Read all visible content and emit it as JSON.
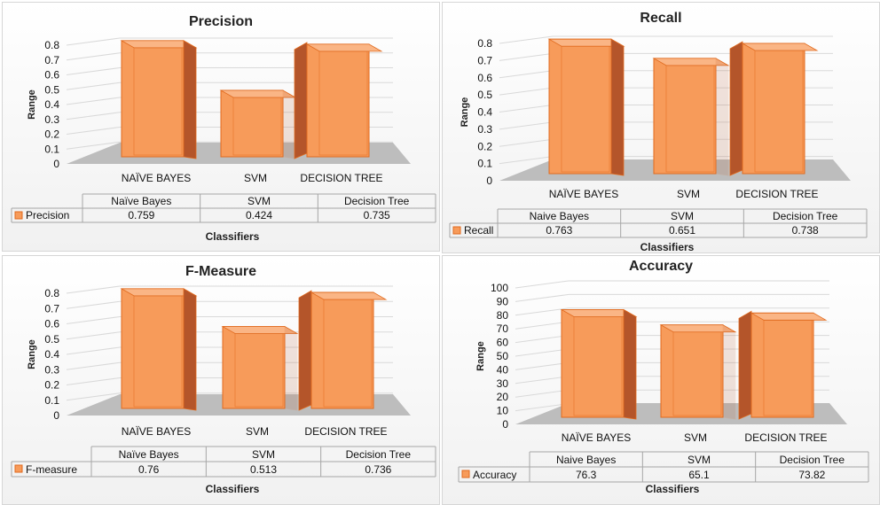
{
  "colors": {
    "bar_front": "#F79B5A",
    "bar_top": "#FAB585",
    "bar_side": "#B4552A",
    "bar_edge": "#E06A1E",
    "floor": "#BDBDBD"
  },
  "chart_data": [
    {
      "type": "bar",
      "title": "Precision",
      "ylabel": "Range",
      "xlabel": "Classifiers",
      "ylim": [
        0,
        0.8
      ],
      "yticks": [
        "0",
        "0.1",
        "0.2",
        "0.3",
        "0.4",
        "0.5",
        "0.6",
        "0.7",
        "0.8"
      ],
      "categories": [
        "NAÏVE BAYES",
        "SVM",
        "DECISION TREE"
      ],
      "table_headers": [
        "Naïve Bayes",
        "SVM",
        "Decision Tree"
      ],
      "series": [
        {
          "name": "Precision",
          "values": [
            0.759,
            0.424,
            0.735
          ],
          "value_labels": [
            "0.759",
            "0.424",
            "0.735"
          ]
        }
      ]
    },
    {
      "type": "bar",
      "title": "Recall",
      "ylabel": "Range",
      "xlabel": "Classifiers",
      "ylim": [
        0,
        0.8
      ],
      "yticks": [
        "0",
        "0.1",
        "0.2",
        "0.3",
        "0.4",
        "0.5",
        "0.6",
        "0.7",
        "0.8"
      ],
      "categories": [
        "NAÏVE BAYES",
        "SVM",
        "DECISION TREE"
      ],
      "table_headers": [
        "Naive Bayes",
        "SVM",
        "Decision Tree"
      ],
      "series": [
        {
          "name": "Recall",
          "values": [
            0.763,
            0.651,
            0.738
          ],
          "value_labels": [
            "0.763",
            "0.651",
            "0.738"
          ]
        }
      ]
    },
    {
      "type": "bar",
      "title": "F-Measure",
      "ylabel": "Range",
      "xlabel": "Classifiers",
      "ylim": [
        0,
        0.8
      ],
      "yticks": [
        "0",
        "0.1",
        "0.2",
        "0.3",
        "0.4",
        "0.5",
        "0.6",
        "0.7",
        "0.8"
      ],
      "categories": [
        "NAÏVE BAYES",
        "SVM",
        "DECISION TREE"
      ],
      "table_headers": [
        "Naïve Bayes",
        "SVM",
        "Decision Tree"
      ],
      "series": [
        {
          "name": "F-measure",
          "values": [
            0.76,
            0.513,
            0.736
          ],
          "value_labels": [
            "0.76",
            "0.513",
            "0.736"
          ]
        }
      ]
    },
    {
      "type": "bar",
      "title": "Accuracy",
      "ylabel": "Range",
      "xlabel": "Classifiers",
      "ylim": [
        0,
        100
      ],
      "yticks": [
        "0",
        "10",
        "20",
        "30",
        "40",
        "50",
        "60",
        "70",
        "80",
        "90",
        "100"
      ],
      "categories": [
        "NAÏVE BAYES",
        "SVM",
        "DECISION TREE"
      ],
      "table_headers": [
        "Naive Bayes",
        "SVM",
        "Decision Tree"
      ],
      "series": [
        {
          "name": "Accuracy",
          "values": [
            76.3,
            65.1,
            73.82
          ],
          "value_labels": [
            "76.3",
            "65.1",
            "73.82"
          ]
        }
      ]
    }
  ]
}
